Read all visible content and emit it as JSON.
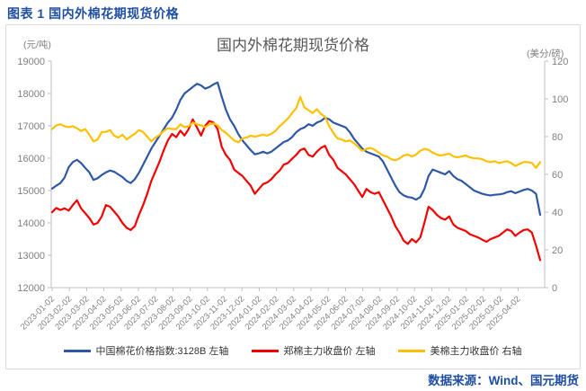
{
  "page": {
    "caption": "图表 1 国内外棉花期现货价格",
    "footer": "数据来源：Wind、国元期货"
  },
  "colors": {
    "caption_text": "#1f4fa1",
    "title_text": "#595959",
    "axis_text": "#808080",
    "axis_line": "#bfbfbf",
    "box_border": "#d9d9d9"
  },
  "chart_data": {
    "type": "line",
    "title": "国内外棉花期现货价格",
    "grid": false,
    "legend_position": "bottom",
    "left_axis": {
      "unit": "(元/吨)",
      "min": 12000,
      "max": 19000,
      "tick_step": 1000,
      "ticks": [
        19000,
        18000,
        17000,
        16000,
        15000,
        14000,
        13000,
        12000
      ]
    },
    "right_axis": {
      "unit": "(美分/磅)",
      "min": 0,
      "max": 120,
      "tick_step": 20,
      "ticks": [
        120,
        100,
        80,
        60,
        40,
        20,
        0
      ]
    },
    "x_tick_labels": [
      "2023-01-02",
      "2023-02-02",
      "2023-03-02",
      "2023-04-02",
      "2023-05-02",
      "2023-06-02",
      "2023-07-02",
      "2023-08-02",
      "2023-09-02",
      "2023-10-02",
      "2023-11-02",
      "2023-12-02",
      "2024-01-02",
      "2024-02-02",
      "2024-03-02",
      "2024-04-02",
      "2024-05-02",
      "2024-06-02",
      "2024-07-02",
      "2024-08-02",
      "2024-09-02",
      "2024-10-02",
      "2024-11-02",
      "2024-12-02",
      "2025-01-02",
      "2025-02-02",
      "2025-03-02",
      "2025-04-02"
    ],
    "x": [
      "2023-01-06",
      "2023-01-13",
      "2023-01-20",
      "2023-01-27",
      "2023-02-03",
      "2023-02-10",
      "2023-02-17",
      "2023-02-24",
      "2023-03-03",
      "2023-03-10",
      "2023-03-17",
      "2023-03-24",
      "2023-03-31",
      "2023-04-07",
      "2023-04-14",
      "2023-04-21",
      "2023-04-28",
      "2023-05-05",
      "2023-05-12",
      "2023-05-19",
      "2023-05-26",
      "2023-06-02",
      "2023-06-09",
      "2023-06-16",
      "2023-06-23",
      "2023-06-30",
      "2023-07-07",
      "2023-07-14",
      "2023-07-21",
      "2023-07-28",
      "2023-08-04",
      "2023-08-11",
      "2023-08-18",
      "2023-08-25",
      "2023-09-01",
      "2023-09-08",
      "2023-09-15",
      "2023-09-22",
      "2023-09-29",
      "2023-10-06",
      "2023-10-13",
      "2023-10-20",
      "2023-10-27",
      "2023-11-03",
      "2023-11-10",
      "2023-11-17",
      "2023-11-24",
      "2023-12-01",
      "2023-12-08",
      "2023-12-15",
      "2023-12-22",
      "2023-12-29",
      "2024-01-05",
      "2024-01-12",
      "2024-01-19",
      "2024-01-26",
      "2024-02-02",
      "2024-02-09",
      "2024-02-16",
      "2024-02-23",
      "2024-03-01",
      "2024-03-08",
      "2024-03-15",
      "2024-03-22",
      "2024-03-29",
      "2024-04-05",
      "2024-04-12",
      "2024-04-19",
      "2024-04-26",
      "2024-05-03",
      "2024-05-10",
      "2024-05-17",
      "2024-05-24",
      "2024-05-31",
      "2024-06-07",
      "2024-06-14",
      "2024-06-21",
      "2024-06-28",
      "2024-07-05",
      "2024-07-12",
      "2024-07-19",
      "2024-07-26",
      "2024-08-02",
      "2024-08-09",
      "2024-08-16",
      "2024-08-23",
      "2024-08-30",
      "2024-09-06",
      "2024-09-13",
      "2024-09-20",
      "2024-09-27",
      "2024-10-04",
      "2024-10-11",
      "2024-10-18",
      "2024-10-25",
      "2024-11-01",
      "2024-11-08",
      "2024-11-15",
      "2024-11-22",
      "2024-11-29",
      "2024-12-06",
      "2024-12-13",
      "2024-12-20",
      "2024-12-27",
      "2025-01-03",
      "2025-01-10",
      "2025-01-17",
      "2025-01-24",
      "2025-01-31",
      "2025-02-07",
      "2025-02-14",
      "2025-02-21",
      "2025-02-28",
      "2025-03-07",
      "2025-03-14",
      "2025-03-21",
      "2025-03-28",
      "2025-04-04",
      "2025-04-11"
    ],
    "series": [
      {
        "name": "中国棉花价格指数:3128B  左轴",
        "axis": "left",
        "color": "#2e58a5",
        "values": [
          15060,
          15150,
          15230,
          15400,
          15720,
          15880,
          15950,
          15850,
          15700,
          15560,
          15330,
          15380,
          15480,
          15560,
          15620,
          15580,
          15500,
          15420,
          15300,
          15230,
          15350,
          15550,
          15800,
          16050,
          16300,
          16500,
          16700,
          16900,
          17100,
          17250,
          17500,
          17800,
          18000,
          18100,
          18200,
          18300,
          18250,
          18150,
          18200,
          18280,
          18340,
          17900,
          17500,
          17200,
          17000,
          16750,
          16550,
          16400,
          16250,
          16120,
          16150,
          16200,
          16150,
          16200,
          16300,
          16400,
          16500,
          16550,
          16650,
          16800,
          16900,
          16950,
          17050,
          17000,
          17100,
          17150,
          17250,
          17200,
          17100,
          17050,
          17000,
          16950,
          16800,
          16600,
          16450,
          16300,
          16200,
          16150,
          16100,
          16050,
          15900,
          15650,
          15400,
          15150,
          14950,
          14850,
          14800,
          14780,
          14720,
          14800,
          15050,
          15450,
          15650,
          15600,
          15550,
          15500,
          15600,
          15450,
          15350,
          15300,
          15200,
          15100,
          15000,
          14950,
          14900,
          14870,
          14850,
          14870,
          14880,
          14900,
          14950,
          14980,
          14920,
          14970,
          15020,
          15050,
          15000,
          14900,
          14250
        ]
      },
      {
        "name": "郑棉主力收盘价  左轴",
        "axis": "left",
        "color": "#f50000",
        "values": [
          14330,
          14460,
          14400,
          14450,
          14380,
          14550,
          14700,
          14450,
          14300,
          14150,
          13950,
          14000,
          14200,
          14550,
          14500,
          14350,
          14200,
          14000,
          13850,
          13780,
          13900,
          14250,
          14550,
          14900,
          15300,
          15600,
          15900,
          16250,
          16550,
          16750,
          16650,
          16850,
          16700,
          16900,
          17200,
          16950,
          16700,
          17000,
          17150,
          17100,
          16900,
          16350,
          16100,
          15950,
          15650,
          15550,
          15450,
          15300,
          15150,
          14900,
          15050,
          15200,
          15250,
          15350,
          15500,
          15620,
          15800,
          15850,
          15980,
          16100,
          16250,
          16300,
          16100,
          16050,
          16200,
          16320,
          16380,
          16100,
          15950,
          15700,
          15600,
          15500,
          15350,
          15200,
          15000,
          14800,
          15050,
          14950,
          14900,
          14950,
          14700,
          14450,
          14200,
          13900,
          13700,
          13450,
          13350,
          13500,
          13400,
          13550,
          14000,
          14500,
          14400,
          14250,
          14150,
          14100,
          14200,
          13950,
          13850,
          13800,
          13750,
          13650,
          13600,
          13550,
          13480,
          13420,
          13500,
          13550,
          13600,
          13700,
          13800,
          13750,
          13600,
          13700,
          13780,
          13800,
          13700,
          13300,
          12850
        ]
      },
      {
        "name": "美棉主力收盘价  右轴",
        "axis": "right",
        "color": "#ffc000",
        "values": [
          84.0,
          86.0,
          86.5,
          85.5,
          85.0,
          85.5,
          84.5,
          83.0,
          84.0,
          81.0,
          77.5,
          78.5,
          82.5,
          82.5,
          83.5,
          80.5,
          79.5,
          81.0,
          78.5,
          80.0,
          81.5,
          83.5,
          82.5,
          80.0,
          77.5,
          79.5,
          81.0,
          83.0,
          84.5,
          84.0,
          84.0,
          86.5,
          85.0,
          85.5,
          87.5,
          86.5,
          86.0,
          85.0,
          86.5,
          87.0,
          86.0,
          83.5,
          82.0,
          80.0,
          78.0,
          77.0,
          79.0,
          79.5,
          80.5,
          80.0,
          80.5,
          81.0,
          80.5,
          81.5,
          83.0,
          85.5,
          87.5,
          89.5,
          92.5,
          95.0,
          101.0,
          95.5,
          94.0,
          92.5,
          94.5,
          92.0,
          90.5,
          85.5,
          82.0,
          79.0,
          78.5,
          77.5,
          78.0,
          76.5,
          74.5,
          72.5,
          73.5,
          74.0,
          73.0,
          71.5,
          70.0,
          69.5,
          68.0,
          67.5,
          68.5,
          70.0,
          70.5,
          69.5,
          70.5,
          72.5,
          73.5,
          73.0,
          71.5,
          70.5,
          70.0,
          70.5,
          71.0,
          69.5,
          69.0,
          69.5,
          70.0,
          69.0,
          68.5,
          68.5,
          68.0,
          67.0,
          66.5,
          67.0,
          66.0,
          66.5,
          67.0,
          66.0,
          64.5,
          65.5,
          66.5,
          66.5,
          66.0,
          63.5,
          66.5
        ]
      }
    ]
  }
}
